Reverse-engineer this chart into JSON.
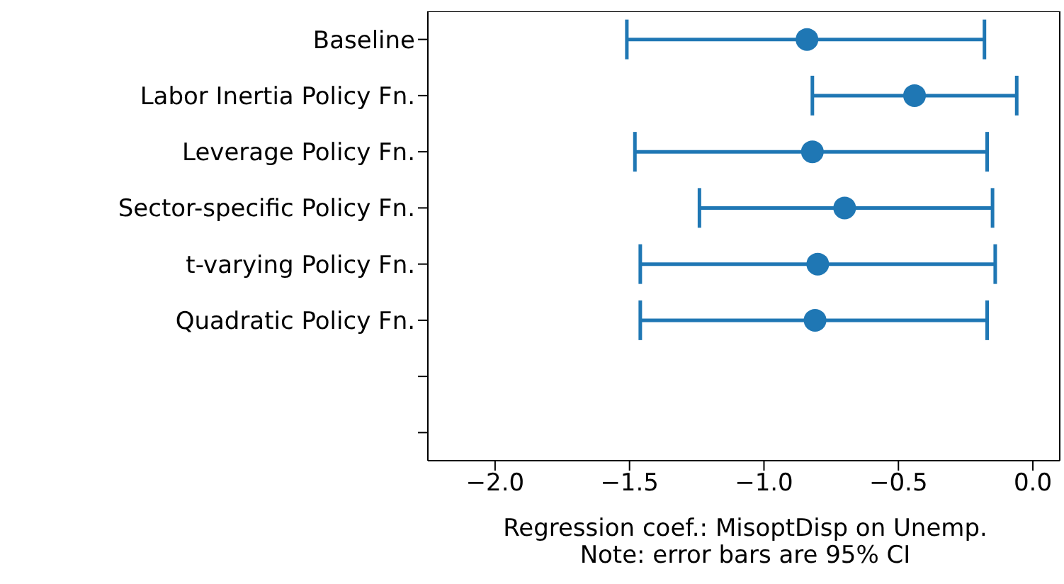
{
  "chart_data": {
    "type": "scatter",
    "orientation": "horizontal",
    "categories": [
      "Baseline",
      "Labor Inertia Policy Fn.",
      "Leverage Policy Fn.",
      "Sector-specific Policy Fn.",
      "t-varying Policy Fn.",
      "Quadratic Policy Fn.",
      null,
      null
    ],
    "series": [
      {
        "color": "#1f77b4",
        "values": [
          -0.84,
          -0.44,
          -0.82,
          -0.7,
          -0.8,
          -0.81,
          null,
          null
        ],
        "errors": [
          [
            -1.51,
            -0.18
          ],
          [
            -0.82,
            -0.06
          ],
          [
            -1.48,
            -0.17
          ],
          [
            -1.24,
            -0.15
          ],
          [
            -1.46,
            -0.14
          ],
          [
            -1.46,
            -0.17
          ],
          null,
          null
        ]
      }
    ],
    "xlim": [
      -2.25,
      0.1
    ],
    "xticks": [
      {
        "value": -2,
        "label": "−2.0"
      },
      {
        "value": -1.5,
        "label": "−1.5"
      },
      {
        "value": -1,
        "label": "−1.0"
      },
      {
        "value": -0.5,
        "label": "−0.5"
      },
      {
        "value": 0,
        "label": "0.0"
      }
    ],
    "xlabel": "Regression coef.: MisoptDisp on Unemp.",
    "annotations": [
      "Note: error bars are 95% CI"
    ],
    "marker": "circle",
    "grid": false
  }
}
